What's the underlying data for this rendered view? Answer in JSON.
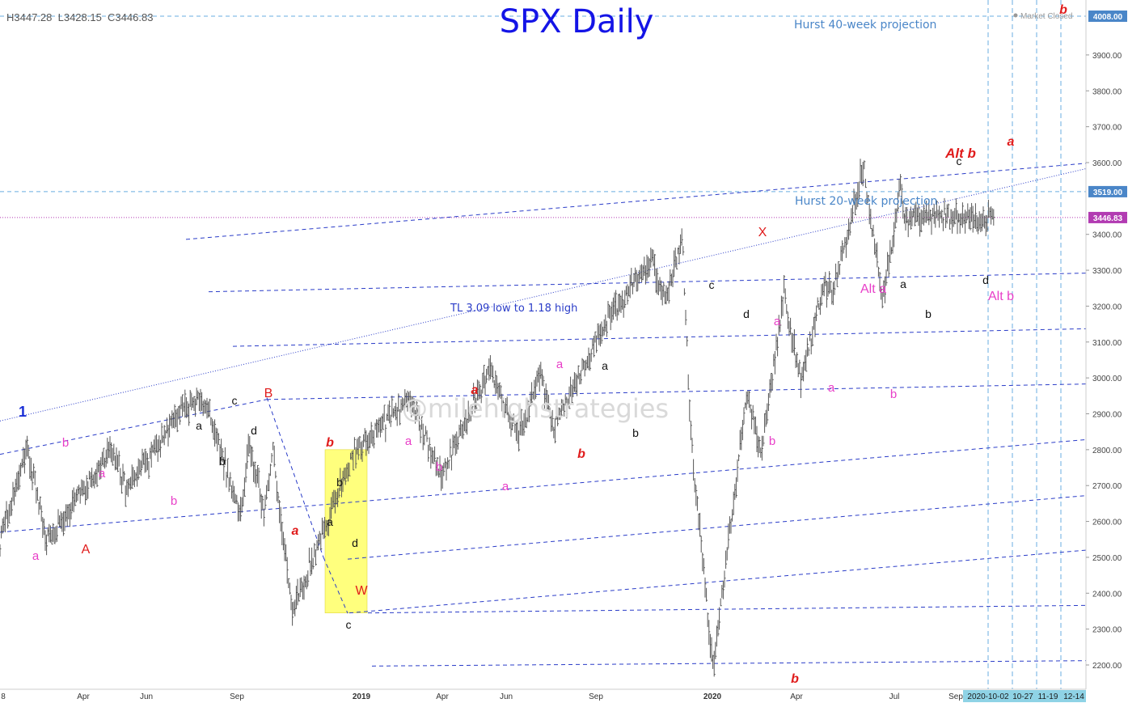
{
  "ohlc_readout": "H3447.28  L3428.15  C3446.83",
  "market_status": "Market Closed",
  "watermark": "@milehighstrategies",
  "colors": {
    "bars": "#555555",
    "channel": "#2a3cc8",
    "projection": "#6aaee0",
    "close_line": "#b23bb2",
    "label_red": "#e01b1b",
    "label_magenta": "#e83ec8",
    "label_black": "#111111",
    "label_blue": "#1a2fd6",
    "highlight": "#ffff66"
  },
  "chart_data": {
    "type": "line",
    "title": "SPX Daily",
    "price_axis": {
      "ticks": [
        "3900.00",
        "3800.00",
        "3700.00",
        "3600.00",
        "3400.00",
        "3300.00",
        "3200.00",
        "3100.00",
        "3000.00",
        "2900.00",
        "2800.00",
        "2700.00",
        "2600.00",
        "2500.00",
        "2400.00",
        "2300.00",
        "2200.00"
      ],
      "tags": [
        {
          "label": "4008.00",
          "color": "#4a86c8"
        },
        {
          "label": "3519.00",
          "color": "#4a86c8"
        },
        {
          "label": "3446.83",
          "color": "#b23bb2"
        }
      ]
    },
    "time_axis": {
      "labels": [
        "8",
        "Apr",
        "Jun",
        "Sep",
        "2019",
        "Apr",
        "Jun",
        "Sep",
        "2020",
        "Apr",
        "Jul",
        "Sep"
      ],
      "date_marks": [
        "2020-10-02",
        "10-27",
        "11-19",
        "12-14"
      ]
    },
    "series": [
      {
        "x": [
          "2018-02-01",
          "2018-02-09",
          "2018-03-13",
          "2018-04-02",
          "2018-06-13",
          "2018-06-28",
          "2018-08-29",
          "2018-09-21",
          "2018-10-29",
          "2018-11-07",
          "2018-11-23",
          "2018-12-03",
          "2018-12-24",
          "2019-03-01",
          "2019-05-01",
          "2019-06-03",
          "2019-07-26",
          "2019-08-26",
          "2019-09-19",
          "2019-10-03",
          "2019-11-27",
          "2020-01-17",
          "2020-01-31",
          "2020-02-19",
          "2020-02-28",
          "2020-03-23",
          "2020-04-29",
          "2020-05-14",
          "2020-06-08",
          "2020-06-26",
          "2020-07-21",
          "2020-07-31",
          "2020-09-02",
          "2020-09-23",
          "2020-10-12",
          "2020-10-16"
        ],
        "values": [
          2870,
          2530,
          2800,
          2550,
          2800,
          2690,
          2915,
          2940,
          2610,
          2820,
          2630,
          2800,
          2350,
          2800,
          2940,
          2730,
          3025,
          2830,
          3020,
          2860,
          3150,
          3330,
          3215,
          3390,
          2850,
          2190,
          2960,
          2790,
          3230,
          3000,
          3260,
          3240,
          3590,
          3210,
          3540,
          3447
        ]
      }
    ],
    "channel_lines_label": "TL 3.09 low to 1.18 high",
    "annotations": [
      {
        "text": "Hurst 40-week projection",
        "price": 4008
      },
      {
        "text": "Hurst 20-week projection",
        "price": 3519
      }
    ],
    "wave_labels": {
      "blue": [
        "1"
      ],
      "red": [
        "A",
        "B",
        "W",
        "X",
        "Alt b"
      ],
      "red_bold_italic": [
        "b",
        "a",
        "a",
        "b",
        "b",
        "a",
        "b"
      ],
      "magenta": [
        "a",
        "b",
        "a",
        "b",
        "a",
        "b",
        "a",
        "a",
        "b",
        "a",
        "b",
        "a",
        "Alt a",
        "Alt b"
      ],
      "black": [
        "a",
        "b",
        "c",
        "d",
        "b",
        "a",
        "d",
        "c",
        "a",
        "b",
        "c",
        "d",
        "a",
        "b",
        "c",
        "d"
      ]
    }
  }
}
